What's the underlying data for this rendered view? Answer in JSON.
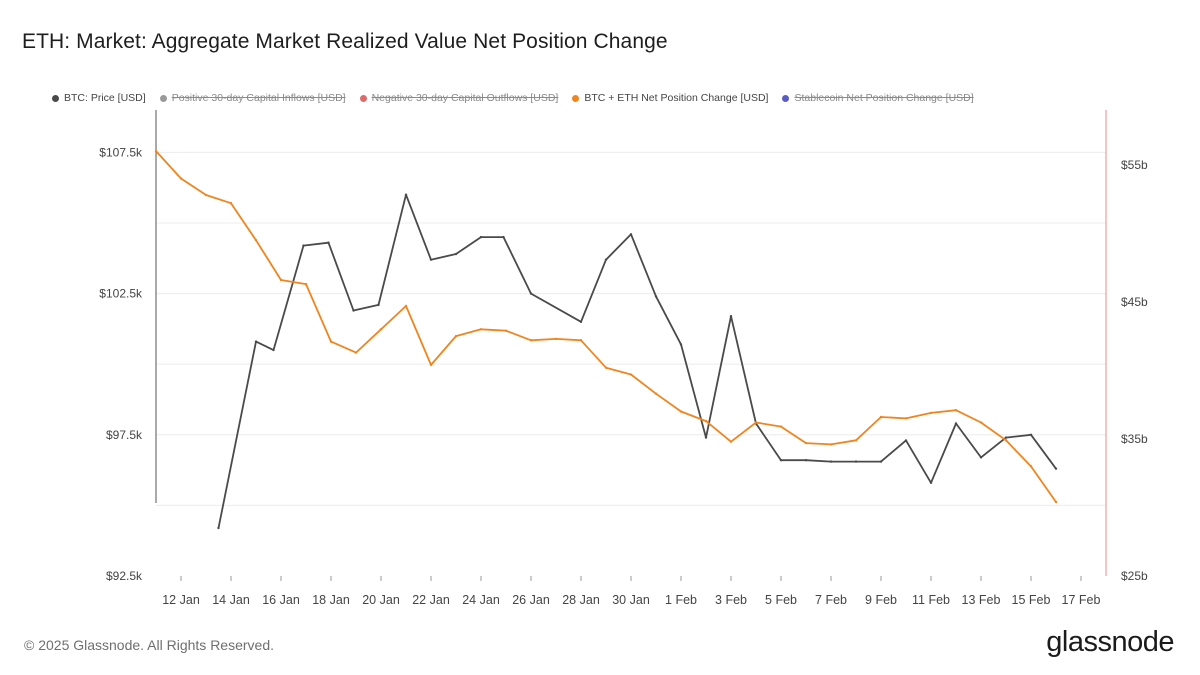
{
  "title": "ETH: Market: Aggregate Market Realized Value Net Position Change",
  "legend": [
    {
      "label": "BTC: Price [USD]",
      "color": "#4a4a4a",
      "active": true
    },
    {
      "label": "Positive 30-day Capital Inflows [USD]",
      "color": "#9a9a9a",
      "active": false
    },
    {
      "label": "Negative 30-day Capital Outflows [USD]",
      "color": "#e06a6a",
      "active": false
    },
    {
      "label": "BTC + ETH Net Position Change [USD]",
      "color": "#f0851e",
      "active": true
    },
    {
      "label": "Stablecoin Net Position Change [USD]",
      "color": "#5b5bc8",
      "active": false
    }
  ],
  "footer": {
    "copyright": "© 2025 Glassnode. All Rights Reserved.",
    "logo": "glassnode"
  },
  "chart_data": {
    "type": "line",
    "title": "ETH: Market: Aggregate Market Realized Value Net Position Change",
    "x_start_day": 11,
    "x_end_day": 49,
    "x_ticks": [
      {
        "day": 12,
        "label": "12 Jan"
      },
      {
        "day": 14,
        "label": "14 Jan"
      },
      {
        "day": 16,
        "label": "16 Jan"
      },
      {
        "day": 18,
        "label": "18 Jan"
      },
      {
        "day": 20,
        "label": "20 Jan"
      },
      {
        "day": 22,
        "label": "22 Jan"
      },
      {
        "day": 24,
        "label": "24 Jan"
      },
      {
        "day": 26,
        "label": "26 Jan"
      },
      {
        "day": 28,
        "label": "28 Jan"
      },
      {
        "day": 30,
        "label": "30 Jan"
      },
      {
        "day": 32,
        "label": "1 Feb"
      },
      {
        "day": 34,
        "label": "3 Feb"
      },
      {
        "day": 36,
        "label": "5 Feb"
      },
      {
        "day": 38,
        "label": "7 Feb"
      },
      {
        "day": 40,
        "label": "9 Feb"
      },
      {
        "day": 42,
        "label": "11 Feb"
      },
      {
        "day": 44,
        "label": "13 Feb"
      },
      {
        "day": 46,
        "label": "15 Feb"
      },
      {
        "day": 48,
        "label": "17 Feb"
      }
    ],
    "y_left": {
      "label": "BTC: Price [USD]",
      "range": [
        92500,
        109000
      ],
      "ticks": [
        {
          "value": 92500,
          "label": "$92.5k"
        },
        {
          "value": 97500,
          "label": "$97.5k"
        },
        {
          "value": 102500,
          "label": "$102.5k"
        },
        {
          "value": 107500,
          "label": "$107.5k"
        }
      ]
    },
    "y_right": {
      "label": "BTC + ETH Net Position Change [USD]",
      "range": [
        25,
        59
      ],
      "ticks": [
        {
          "value": 25,
          "label": "$25b"
        },
        {
          "value": 35,
          "label": "$35b"
        },
        {
          "value": 45,
          "label": "$45b"
        },
        {
          "value": 55,
          "label": "$55b"
        }
      ]
    },
    "gridlines": [
      95000,
      97500,
      100000,
      102500,
      105000,
      107500
    ],
    "series": [
      {
        "name": "BTC: Price [USD]",
        "axis": "left",
        "color": "#4a4a4a",
        "x": [
          13.5,
          15,
          15.7,
          16.9,
          17.9,
          18.9,
          19.9,
          21,
          22,
          23,
          24,
          24.9,
          26,
          28,
          29,
          30,
          31,
          32,
          33,
          34,
          35,
          36,
          37,
          38,
          39,
          40,
          41,
          42,
          43,
          44,
          45,
          46,
          47
        ],
        "values": [
          94200,
          100800,
          100500,
          104200,
          104300,
          101900,
          102100,
          106000,
          103700,
          103900,
          104500,
          104500,
          102500,
          101500,
          103700,
          104600,
          102400,
          100700,
          97400,
          101700,
          97900,
          96600,
          96600,
          96550,
          96550,
          96550,
          97300,
          95800,
          97900,
          96700,
          97400,
          97500,
          96300
        ]
      },
      {
        "name": "BTC + ETH Net Position Change [USD]",
        "axis": "right",
        "color": "#f0851e",
        "x": [
          11,
          12,
          13,
          14,
          15,
          16,
          17,
          18,
          19,
          20,
          21,
          22,
          23,
          24,
          25,
          26,
          27,
          28,
          29,
          30,
          31,
          32,
          33,
          34,
          35,
          36,
          37,
          38,
          39,
          40,
          41,
          42,
          43,
          44,
          45,
          46,
          47
        ],
        "values": [
          56,
          54,
          52.8,
          52.2,
          49.5,
          46.6,
          46.3,
          42.1,
          41.3,
          43.0,
          44.7,
          40.4,
          42.5,
          43.0,
          42.9,
          42.2,
          42.3,
          42.2,
          40.2,
          39.7,
          38.3,
          37.0,
          36.3,
          34.8,
          36.2,
          35.9,
          34.7,
          34.6,
          34.9,
          36.6,
          36.5,
          36.9,
          37.1,
          36.2,
          34.9,
          33.0,
          30.4
        ]
      }
    ]
  }
}
